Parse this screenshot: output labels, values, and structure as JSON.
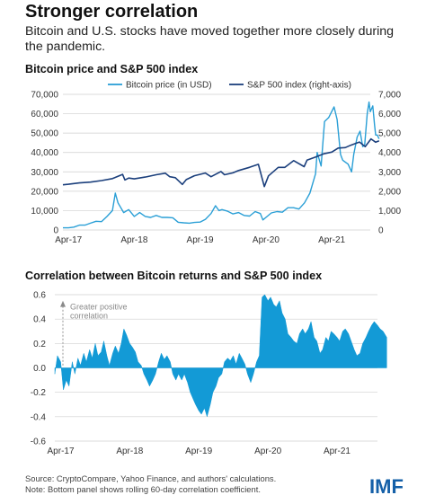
{
  "title": "Stronger correlation",
  "subtitle": "Bitcoin and U.S. stocks have moved together more closely during the pandemic.",
  "footer": {
    "source": "Source: CryptoCompare, Yahoo Finance, and authors' calculations.",
    "note": "Note: Bottom panel shows rolling 60-day correlation coefficient."
  },
  "logo": "IMF",
  "colors": {
    "bitcoin": "#2a9fd6",
    "sp500": "#1b3f7c",
    "correlation": "#139ad6",
    "grid": "#cfcfcf"
  },
  "chart_data": [
    {
      "type": "line",
      "title": "Bitcoin price and S&P 500 index",
      "x_ticks": [
        "Apr-17",
        "Apr-18",
        "Apr-19",
        "Apr-20",
        "Apr-21"
      ],
      "xlim": [
        "2017-03",
        "2021-11"
      ],
      "y_left_ticks": [
        "0",
        "10,000",
        "20,000",
        "30,000",
        "40,000",
        "50,000",
        "60,000",
        "70,000"
      ],
      "y_left_lim": [
        0,
        70000
      ],
      "y_right_ticks": [
        "0",
        "1,000",
        "2,000",
        "3,000",
        "4,000",
        "5,000",
        "6,000",
        "7,000"
      ],
      "y_right_lim": [
        0,
        7000
      ],
      "grid": "horizontal",
      "legend": "top",
      "series": [
        {
          "name": "Bitcoin price (in USD)",
          "axis": "left",
          "points": [
            [
              "2017-03-01",
              1100
            ],
            [
              "2017-04-01",
              1100
            ],
            [
              "2017-05-01",
              1500
            ],
            [
              "2017-06-01",
              2500
            ],
            [
              "2017-07-01",
              2500
            ],
            [
              "2017-08-01",
              3500
            ],
            [
              "2017-09-01",
              4500
            ],
            [
              "2017-10-01",
              4300
            ],
            [
              "2017-11-01",
              7000
            ],
            [
              "2017-12-01",
              10000
            ],
            [
              "2017-12-17",
              19000
            ],
            [
              "2018-01-01",
              14000
            ],
            [
              "2018-02-01",
              9000
            ],
            [
              "2018-03-01",
              10500
            ],
            [
              "2018-04-01",
              7000
            ],
            [
              "2018-05-01",
              9000
            ],
            [
              "2018-06-01",
              7000
            ],
            [
              "2018-07-01",
              6500
            ],
            [
              "2018-08-01",
              7500
            ],
            [
              "2018-09-01",
              6500
            ],
            [
              "2018-10-01",
              6500
            ],
            [
              "2018-11-01",
              6300
            ],
            [
              "2018-12-01",
              4000
            ],
            [
              "2019-01-01",
              3700
            ],
            [
              "2019-02-01",
              3500
            ],
            [
              "2019-03-01",
              3900
            ],
            [
              "2019-04-01",
              4100
            ],
            [
              "2019-05-01",
              5500
            ],
            [
              "2019-06-01",
              8500
            ],
            [
              "2019-06-26",
              12500
            ],
            [
              "2019-07-15",
              10000
            ],
            [
              "2019-08-01",
              10500
            ],
            [
              "2019-09-01",
              9700
            ],
            [
              "2019-10-01",
              8300
            ],
            [
              "2019-11-01",
              9000
            ],
            [
              "2019-12-01",
              7500
            ],
            [
              "2020-01-01",
              7200
            ],
            [
              "2020-02-01",
              9500
            ],
            [
              "2020-03-01",
              8500
            ],
            [
              "2020-03-15",
              5200
            ],
            [
              "2020-04-01",
              6500
            ],
            [
              "2020-05-01",
              8800
            ],
            [
              "2020-06-01",
              9500
            ],
            [
              "2020-07-01",
              9200
            ],
            [
              "2020-08-01",
              11500
            ],
            [
              "2020-09-01",
              11500
            ],
            [
              "2020-10-01",
              10800
            ],
            [
              "2020-11-01",
              14000
            ],
            [
              "2020-12-01",
              19000
            ],
            [
              "2021-01-01",
              29000
            ],
            [
              "2021-01-10",
              40000
            ],
            [
              "2021-02-01",
              33000
            ],
            [
              "2021-02-20",
              56000
            ],
            [
              "2021-03-15",
              58000
            ],
            [
              "2021-04-14",
              63500
            ],
            [
              "2021-05-01",
              57000
            ],
            [
              "2021-05-20",
              39000
            ],
            [
              "2021-06-01",
              36000
            ],
            [
              "2021-07-01",
              34000
            ],
            [
              "2021-07-20",
              30000
            ],
            [
              "2021-08-01",
              39000
            ],
            [
              "2021-08-20",
              48000
            ],
            [
              "2021-09-05",
              51000
            ],
            [
              "2021-09-20",
              43000
            ],
            [
              "2021-10-01",
              44000
            ],
            [
              "2021-10-15",
              60000
            ],
            [
              "2021-10-25",
              66000
            ],
            [
              "2021-11-01",
              61000
            ],
            [
              "2021-11-15",
              64000
            ],
            [
              "2021-11-25",
              54000
            ],
            [
              "2021-12-01",
              49000
            ],
            [
              "2021-12-10",
              49000
            ],
            [
              "2021-12-20",
              47000
            ]
          ]
        },
        {
          "name": "S&P 500 index (right-axis)",
          "axis": "right",
          "points": [
            [
              "2017-03-01",
              2330
            ],
            [
              "2017-04-01",
              2360
            ],
            [
              "2017-06-01",
              2430
            ],
            [
              "2017-08-01",
              2470
            ],
            [
              "2017-10-01",
              2550
            ],
            [
              "2017-12-01",
              2650
            ],
            [
              "2018-01-26",
              2870
            ],
            [
              "2018-02-08",
              2580
            ],
            [
              "2018-03-01",
              2680
            ],
            [
              "2018-04-01",
              2640
            ],
            [
              "2018-06-01",
              2730
            ],
            [
              "2018-08-01",
              2850
            ],
            [
              "2018-09-20",
              2930
            ],
            [
              "2018-10-15",
              2750
            ],
            [
              "2018-11-15",
              2700
            ],
            [
              "2018-12-24",
              2350
            ],
            [
              "2019-01-15",
              2600
            ],
            [
              "2019-03-01",
              2800
            ],
            [
              "2019-04-30",
              2940
            ],
            [
              "2019-06-01",
              2750
            ],
            [
              "2019-07-26",
              3020
            ],
            [
              "2019-08-15",
              2850
            ],
            [
              "2019-10-01",
              2950
            ],
            [
              "2019-11-01",
              3070
            ],
            [
              "2019-12-31",
              3230
            ],
            [
              "2020-02-19",
              3390
            ],
            [
              "2020-03-23",
              2240
            ],
            [
              "2020-04-15",
              2790
            ],
            [
              "2020-06-08",
              3230
            ],
            [
              "2020-07-15",
              3230
            ],
            [
              "2020-09-02",
              3580
            ],
            [
              "2020-10-30",
              3270
            ],
            [
              "2020-11-15",
              3600
            ],
            [
              "2020-12-31",
              3760
            ],
            [
              "2021-02-15",
              3930
            ],
            [
              "2021-04-01",
              4020
            ],
            [
              "2021-05-07",
              4230
            ],
            [
              "2021-06-15",
              4250
            ],
            [
              "2021-07-15",
              4370
            ],
            [
              "2021-08-15",
              4480
            ],
            [
              "2021-09-02",
              4540
            ],
            [
              "2021-10-04",
              4300
            ],
            [
              "2021-11-05",
              4700
            ],
            [
              "2021-12-01",
              4530
            ],
            [
              "2021-12-20",
              4600
            ]
          ]
        }
      ]
    },
    {
      "type": "area",
      "title": "Correlation between Bitcoin returns and S&P 500 index",
      "x_ticks": [
        "Apr-17",
        "Apr-18",
        "Apr-19",
        "Apr-20",
        "Apr-21"
      ],
      "xlim": [
        "2017-03",
        "2021-11"
      ],
      "y_ticks": [
        "0.6",
        "0.4",
        "0.2",
        "0.0",
        "-0.2",
        "-0.4",
        "-0.6"
      ],
      "ylim": [
        -0.6,
        0.6
      ],
      "annotation": "Greater positive correlation",
      "grid": "horizontal",
      "series": [
        {
          "name": "",
          "points": [
            [
              "2017-03-01",
              -0.05
            ],
            [
              "2017-03-15",
              0.1
            ],
            [
              "2017-04-01",
              0.05
            ],
            [
              "2017-04-15",
              -0.18
            ],
            [
              "2017-05-01",
              -0.1
            ],
            [
              "2017-05-15",
              -0.15
            ],
            [
              "2017-06-01",
              0.05
            ],
            [
              "2017-06-15",
              -0.05
            ],
            [
              "2017-07-01",
              0.08
            ],
            [
              "2017-07-15",
              0.02
            ],
            [
              "2017-08-01",
              0.12
            ],
            [
              "2017-08-15",
              0.05
            ],
            [
              "2017-09-01",
              0.15
            ],
            [
              "2017-09-15",
              0.08
            ],
            [
              "2017-10-01",
              0.2
            ],
            [
              "2017-10-15",
              0.1
            ],
            [
              "2017-11-01",
              0.13
            ],
            [
              "2017-11-15",
              0.22
            ],
            [
              "2017-12-01",
              0.1
            ],
            [
              "2017-12-15",
              0.02
            ],
            [
              "2018-01-01",
              0.12
            ],
            [
              "2018-01-15",
              0.18
            ],
            [
              "2018-02-01",
              0.12
            ],
            [
              "2018-02-15",
              0.2
            ],
            [
              "2018-03-01",
              0.32
            ],
            [
              "2018-03-15",
              0.27
            ],
            [
              "2018-04-01",
              0.2
            ],
            [
              "2018-04-15",
              0.17
            ],
            [
              "2018-05-01",
              0.13
            ],
            [
              "2018-05-15",
              0.05
            ],
            [
              "2018-06-01",
              0.02
            ],
            [
              "2018-06-15",
              -0.05
            ],
            [
              "2018-07-01",
              -0.1
            ],
            [
              "2018-07-15",
              -0.15
            ],
            [
              "2018-08-01",
              -0.1
            ],
            [
              "2018-08-15",
              -0.05
            ],
            [
              "2018-09-01",
              0.05
            ],
            [
              "2018-09-15",
              0.12
            ],
            [
              "2018-10-01",
              0.07
            ],
            [
              "2018-10-15",
              0.1
            ],
            [
              "2018-11-01",
              0.05
            ],
            [
              "2018-11-15",
              -0.05
            ],
            [
              "2018-12-01",
              -0.1
            ],
            [
              "2018-12-15",
              -0.05
            ],
            [
              "2019-01-01",
              -0.1
            ],
            [
              "2019-01-15",
              -0.05
            ],
            [
              "2019-02-01",
              -0.12
            ],
            [
              "2019-02-15",
              -0.2
            ],
            [
              "2019-03-01",
              -0.25
            ],
            [
              "2019-03-15",
              -0.3
            ],
            [
              "2019-04-01",
              -0.35
            ],
            [
              "2019-04-15",
              -0.38
            ],
            [
              "2019-05-01",
              -0.33
            ],
            [
              "2019-05-15",
              -0.4
            ],
            [
              "2019-06-01",
              -0.3
            ],
            [
              "2019-06-15",
              -0.2
            ],
            [
              "2019-07-01",
              -0.15
            ],
            [
              "2019-07-15",
              -0.08
            ],
            [
              "2019-08-01",
              -0.05
            ],
            [
              "2019-08-15",
              0.05
            ],
            [
              "2019-09-01",
              0.08
            ],
            [
              "2019-09-15",
              0.06
            ],
            [
              "2019-10-01",
              0.1
            ],
            [
              "2019-10-15",
              0.03
            ],
            [
              "2019-11-01",
              0.12
            ],
            [
              "2019-11-15",
              0.08
            ],
            [
              "2019-12-01",
              0.03
            ],
            [
              "2019-12-15",
              -0.05
            ],
            [
              "2020-01-01",
              -0.12
            ],
            [
              "2020-01-15",
              -0.05
            ],
            [
              "2020-02-01",
              0.05
            ],
            [
              "2020-02-15",
              0.1
            ],
            [
              "2020-03-01",
              0.58
            ],
            [
              "2020-03-15",
              0.6
            ],
            [
              "2020-04-01",
              0.55
            ],
            [
              "2020-04-15",
              0.58
            ],
            [
              "2020-05-01",
              0.52
            ],
            [
              "2020-05-15",
              0.5
            ],
            [
              "2020-06-01",
              0.55
            ],
            [
              "2020-06-15",
              0.45
            ],
            [
              "2020-07-01",
              0.4
            ],
            [
              "2020-07-15",
              0.28
            ],
            [
              "2020-08-01",
              0.25
            ],
            [
              "2020-08-15",
              0.22
            ],
            [
              "2020-09-01",
              0.2
            ],
            [
              "2020-09-15",
              0.28
            ],
            [
              "2020-10-01",
              0.32
            ],
            [
              "2020-10-15",
              0.28
            ],
            [
              "2020-11-01",
              0.32
            ],
            [
              "2020-11-15",
              0.38
            ],
            [
              "2020-12-01",
              0.25
            ],
            [
              "2020-12-15",
              0.22
            ],
            [
              "2021-01-01",
              0.12
            ],
            [
              "2021-01-15",
              0.15
            ],
            [
              "2021-02-01",
              0.25
            ],
            [
              "2021-02-15",
              0.22
            ],
            [
              "2021-03-01",
              0.3
            ],
            [
              "2021-03-15",
              0.28
            ],
            [
              "2021-04-01",
              0.25
            ],
            [
              "2021-04-15",
              0.22
            ],
            [
              "2021-05-01",
              0.3
            ],
            [
              "2021-05-15",
              0.32
            ],
            [
              "2021-06-01",
              0.28
            ],
            [
              "2021-06-15",
              0.22
            ],
            [
              "2021-07-01",
              0.15
            ],
            [
              "2021-07-15",
              0.1
            ],
            [
              "2021-08-01",
              0.12
            ],
            [
              "2021-08-15",
              0.2
            ],
            [
              "2021-09-01",
              0.25
            ],
            [
              "2021-09-15",
              0.3
            ],
            [
              "2021-10-01",
              0.35
            ],
            [
              "2021-10-15",
              0.38
            ],
            [
              "2021-11-01",
              0.35
            ],
            [
              "2021-11-15",
              0.32
            ],
            [
              "2021-12-01",
              0.3
            ],
            [
              "2021-12-20",
              0.25
            ]
          ]
        }
      ]
    }
  ]
}
